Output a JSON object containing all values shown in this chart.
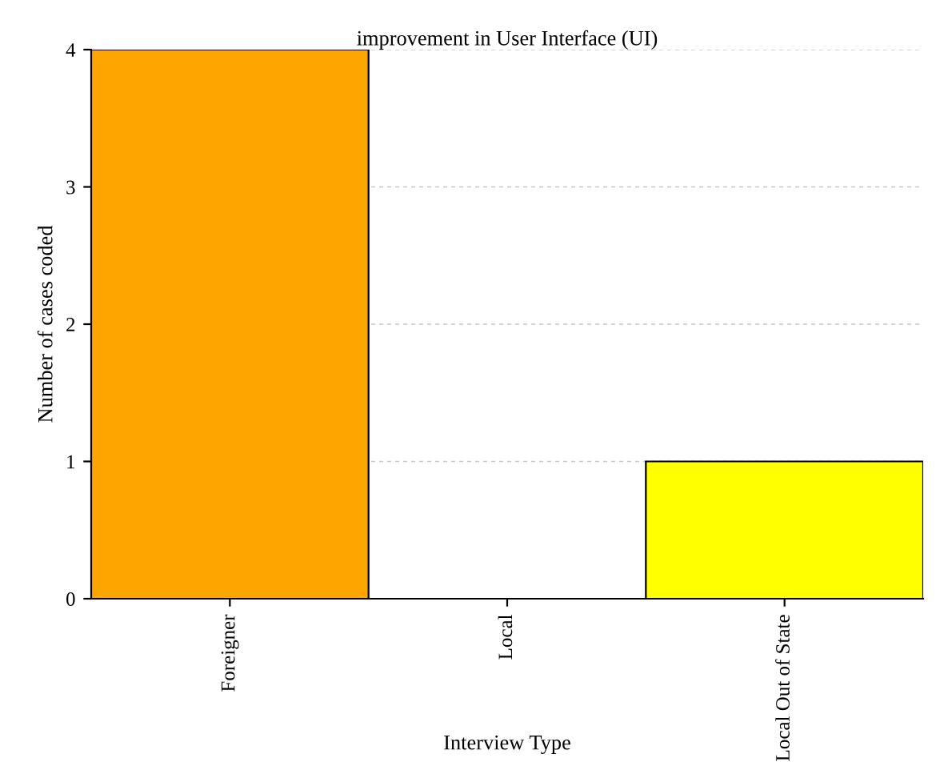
{
  "chart_data": {
    "type": "bar",
    "title": "improvement in User Interface (UI)",
    "xlabel": "Interview Type",
    "ylabel": "Number of cases coded",
    "categories": [
      "Foreigner",
      "Local",
      "Local Out of State"
    ],
    "values": [
      4,
      0,
      1
    ],
    "colors": [
      "#ffa500",
      null,
      "#ffff00"
    ],
    "ylim": [
      0,
      4
    ],
    "yticks": [
      0,
      1,
      2,
      3,
      4
    ],
    "grid": "y",
    "legend": false
  }
}
